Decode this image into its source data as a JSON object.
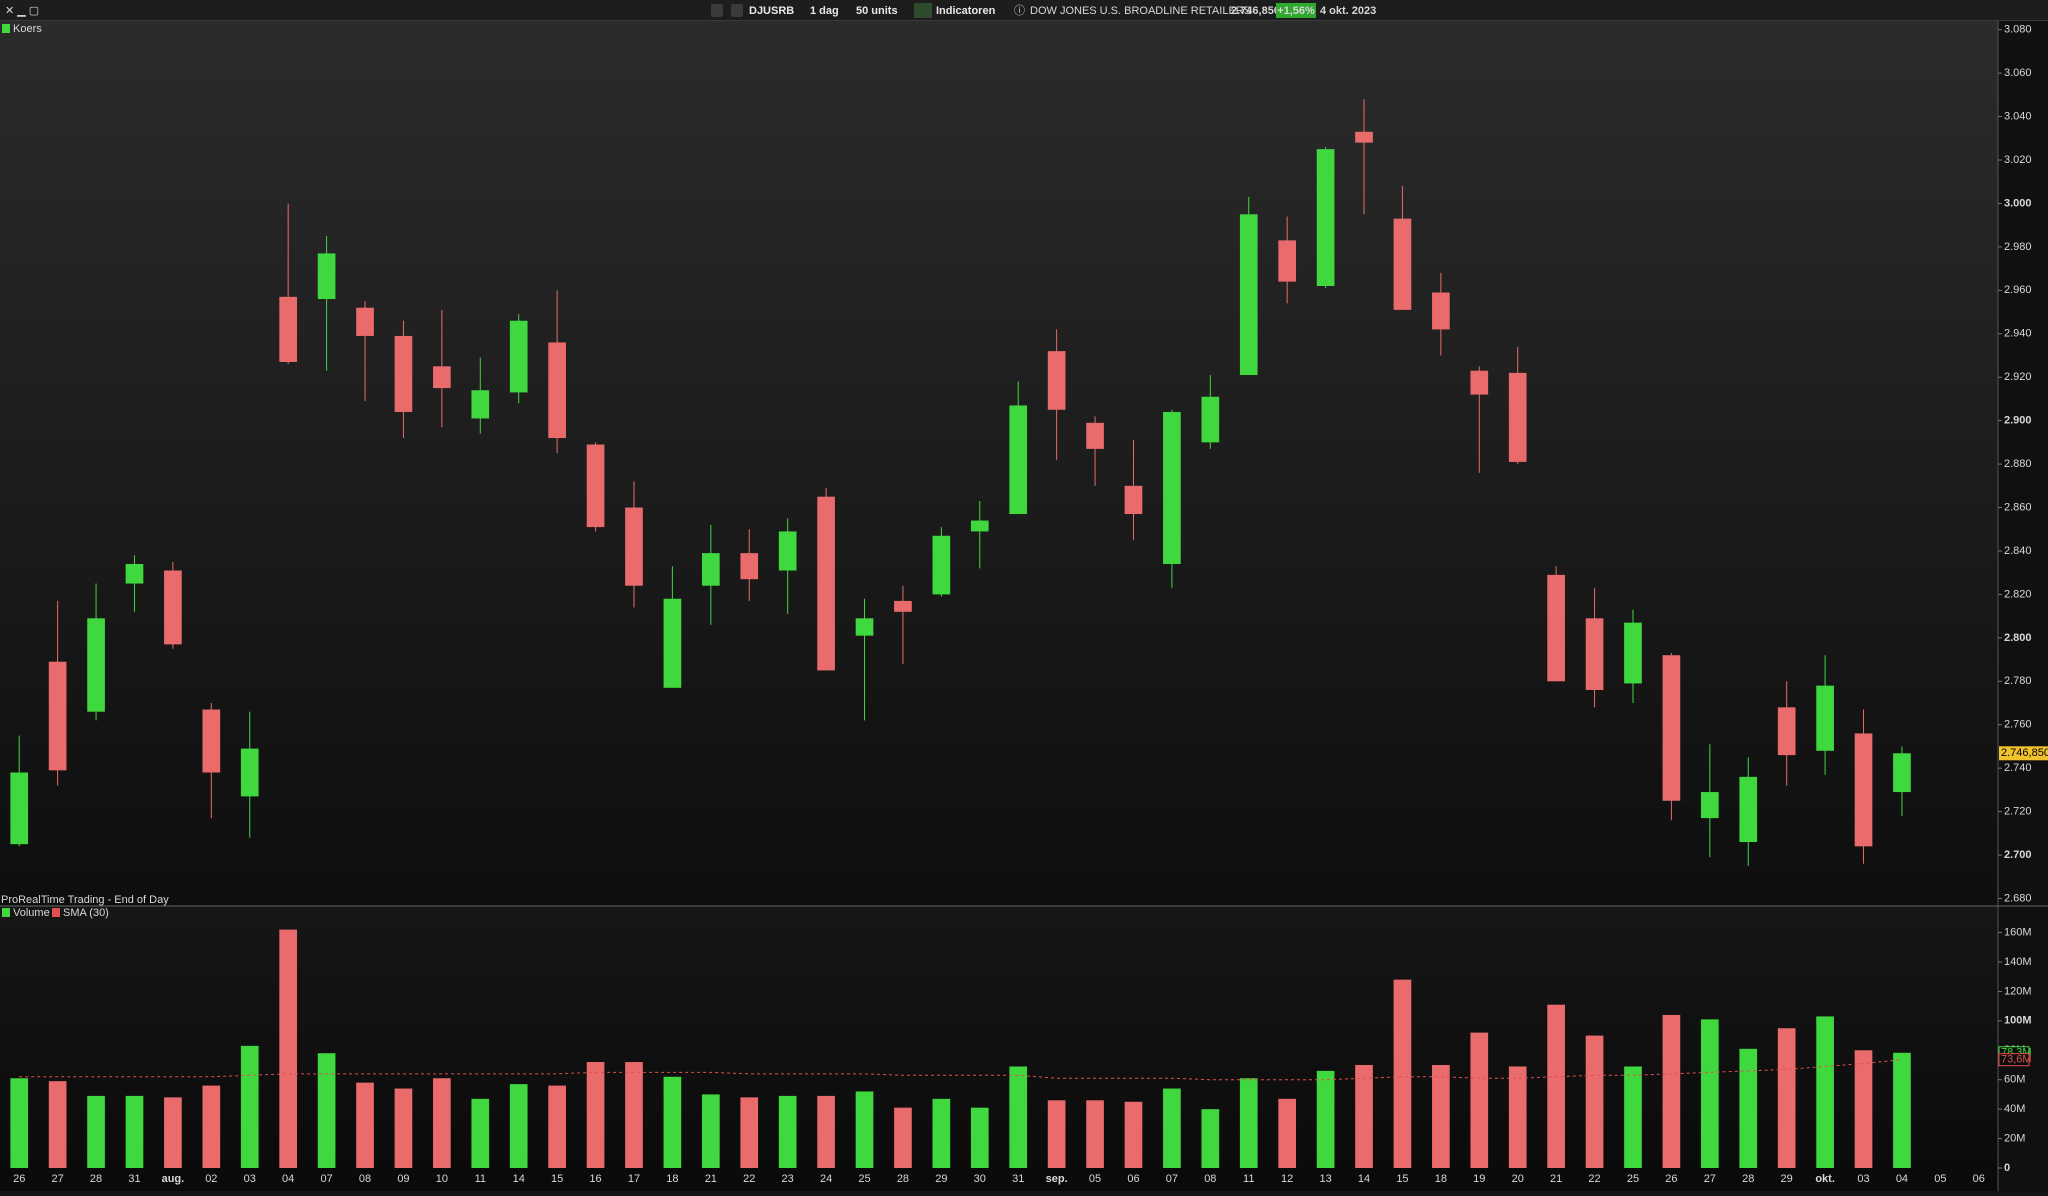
{
  "header": {
    "symbol": "DJUSRB",
    "period": "1 dag",
    "units": "50 units",
    "indicators": "Indicatoren",
    "instrument": "DOW JONES U.S. BROADLINE RETAILERS",
    "price": "2.746,850",
    "change": "+1,56%",
    "date": "4 okt. 2023"
  },
  "chart_data": [
    {
      "type": "candlestick",
      "title": "Koers",
      "source": "ProRealTime Trading - End of Day",
      "categories": [
        "26",
        "27",
        "28",
        "31",
        "aug.",
        "02",
        "03",
        "04",
        "07",
        "08",
        "09",
        "10",
        "11",
        "14",
        "15",
        "16",
        "17",
        "18",
        "21",
        "22",
        "23",
        "24",
        "25",
        "28",
        "29",
        "30",
        "31",
        "sep.",
        "05",
        "06",
        "07",
        "08",
        "11",
        "12",
        "13",
        "14",
        "15",
        "18",
        "19",
        "20",
        "21",
        "22",
        "25",
        "26",
        "27",
        "28",
        "29",
        "okt.",
        "03",
        "04",
        "05",
        "06"
      ],
      "open": [
        2705,
        2789,
        2766,
        2825,
        2831,
        2767,
        2727,
        2957,
        2956,
        2952,
        2939,
        2925,
        2901,
        2913,
        2936,
        2889,
        2860,
        2777,
        2824,
        2839,
        2831,
        2865,
        2801,
        2817,
        2820,
        2849,
        2857,
        2932,
        2899,
        2870,
        2834,
        2890,
        2921,
        2983,
        2962,
        3033,
        2993,
        2959,
        2923,
        2922,
        2829,
        2809,
        2779,
        2792,
        2717,
        2706,
        2768,
        2748,
        2756,
        2729,
        null,
        null
      ],
      "high": [
        2755,
        2817,
        2825,
        2838,
        2835,
        2770,
        2766,
        3000,
        2985,
        2955,
        2946,
        2951,
        2929,
        2949,
        2960,
        2890,
        2872,
        2833,
        2852,
        2850,
        2855,
        2869,
        2818,
        2824,
        2851,
        2863,
        2918,
        2942,
        2902,
        2891,
        2905,
        2921,
        3003,
        2994,
        3026,
        3048,
        3008,
        2968,
        2925,
        2934,
        2833,
        2823,
        2813,
        2793,
        2751,
        2745,
        2780,
        2792,
        2767,
        2750,
        null,
        null
      ],
      "low": [
        2704,
        2732,
        2762,
        2812,
        2795,
        2717,
        2708,
        2926,
        2923,
        2909,
        2892,
        2897,
        2894,
        2908,
        2885,
        2849,
        2814,
        2777,
        2806,
        2817,
        2811,
        2785,
        2762,
        2788,
        2819,
        2832,
        2857,
        2882,
        2870,
        2845,
        2823,
        2887,
        2921,
        2954,
        2961,
        2995,
        2951,
        2930,
        2876,
        2880,
        2780,
        2768,
        2770,
        2716,
        2699,
        2695,
        2732,
        2737,
        2696,
        2718,
        null,
        null
      ],
      "close": [
        2738,
        2739,
        2809,
        2834,
        2797,
        2738,
        2749,
        2927,
        2977,
        2939,
        2904,
        2915,
        2914,
        2946,
        2892,
        2851,
        2824,
        2818,
        2839,
        2827,
        2849,
        2785,
        2809,
        2812,
        2847,
        2854,
        2907,
        2905,
        2887,
        2857,
        2904,
        2911,
        2995,
        2964,
        3025,
        3028,
        2951,
        2942,
        2912,
        2881,
        2780,
        2776,
        2807,
        2725,
        2729,
        2736,
        2746,
        2778,
        2704,
        2746.85,
        null,
        null
      ],
      "up_color": "#3fd83f",
      "down_color": "#ea6b6b",
      "last_price": 2746.85,
      "ylim": [
        2677,
        3084
      ],
      "yticks": [
        {
          "value": 3080,
          "label": "3.080"
        },
        {
          "value": 3060,
          "label": "3.060"
        },
        {
          "value": 3040,
          "label": "3.040"
        },
        {
          "value": 3020,
          "label": "3.020"
        },
        {
          "value": 3000,
          "label": "3.000"
        },
        {
          "value": 2980,
          "label": "2.980"
        },
        {
          "value": 2960,
          "label": "2.960"
        },
        {
          "value": 2940,
          "label": "2.940"
        },
        {
          "value": 2920,
          "label": "2.920"
        },
        {
          "value": 2900,
          "label": "2.900"
        },
        {
          "value": 2880,
          "label": "2.880"
        },
        {
          "value": 2860,
          "label": "2.860"
        },
        {
          "value": 2840,
          "label": "2.840"
        },
        {
          "value": 2820,
          "label": "2.820"
        },
        {
          "value": 2800,
          "label": "2.800"
        },
        {
          "value": 2780,
          "label": "2.780"
        },
        {
          "value": 2760,
          "label": "2.760"
        },
        {
          "value": 2740,
          "label": "2.740"
        },
        {
          "value": 2720,
          "label": "2.720"
        },
        {
          "value": 2700,
          "label": "2.700"
        },
        {
          "value": 2680,
          "label": "2.680"
        }
      ]
    },
    {
      "type": "bar",
      "series": [
        {
          "name": "Volume",
          "values": [
            61,
            59,
            49,
            49,
            48,
            56,
            83,
            162,
            78,
            58,
            54,
            61,
            47,
            57,
            56,
            72,
            72,
            62,
            50,
            48,
            49,
            49,
            52,
            41,
            47,
            41,
            69,
            46,
            46,
            45,
            54,
            40,
            61,
            47,
            66,
            70,
            128,
            70,
            92,
            69,
            111,
            90,
            69,
            104,
            101,
            81,
            95,
            103,
            80,
            78.3,
            null,
            null
          ],
          "last_label": "78,3M",
          "label_color": "#3fd83f"
        },
        {
          "name": "SMA (30)",
          "type": "line",
          "color": "#e05050",
          "values": [
            62,
            62,
            62,
            62,
            62,
            62,
            63,
            64,
            64,
            64,
            64,
            64,
            64,
            64,
            64,
            65,
            65,
            65,
            65,
            64,
            64,
            64,
            64,
            63,
            63,
            63,
            63,
            61,
            61,
            61,
            61,
            60,
            60,
            60,
            60,
            61,
            62,
            62,
            61,
            61,
            62,
            63,
            63,
            64,
            65,
            66,
            67,
            69,
            71,
            73.6,
            null,
            null
          ],
          "last_label": "73,6M"
        }
      ],
      "ylim": [
        0,
        176
      ],
      "yticks": [
        0,
        {
          "value": 20,
          "label": "20M"
        },
        {
          "value": 40,
          "label": "40M"
        },
        {
          "value": 60,
          "label": "60M"
        },
        {
          "value": 80,
          "label": "80M"
        },
        {
          "value": 100,
          "label": "100M"
        },
        {
          "value": 120,
          "label": "120M"
        },
        {
          "value": 140,
          "label": "140M"
        },
        {
          "value": 160,
          "label": "160M"
        }
      ]
    }
  ]
}
